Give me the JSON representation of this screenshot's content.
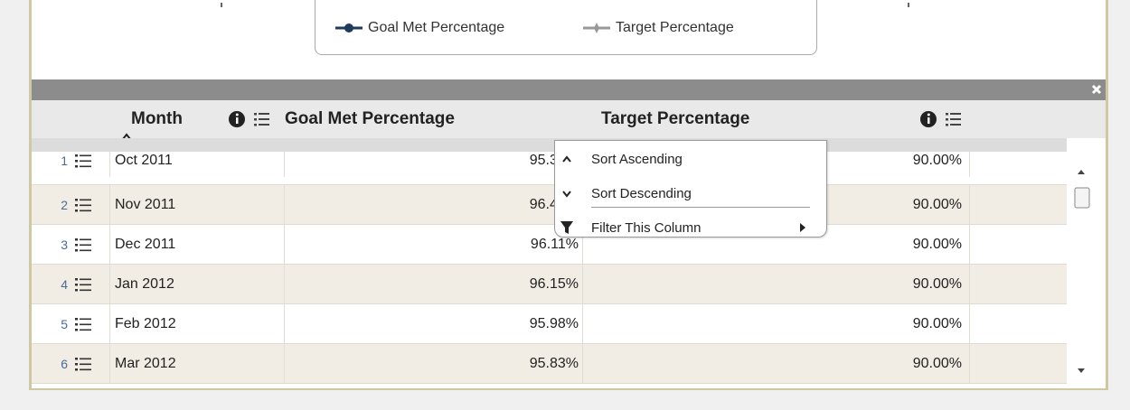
{
  "legend": {
    "items": [
      "Goal Met Percentage",
      "Target Percentage"
    ]
  },
  "table": {
    "headers": [
      "Month",
      "Goal Met Percentage",
      "Target Percentage"
    ],
    "rows": [
      {
        "index": "1",
        "month": "Oct 2011",
        "goal": "95.34%",
        "target": "90.00%"
      },
      {
        "index": "2",
        "month": "Nov 2011",
        "goal": "96.45%",
        "target": "90.00%"
      },
      {
        "index": "3",
        "month": "Dec 2011",
        "goal": "96.11%",
        "target": "90.00%"
      },
      {
        "index": "4",
        "month": "Jan 2012",
        "goal": "96.15%",
        "target": "90.00%"
      },
      {
        "index": "5",
        "month": "Feb 2012",
        "goal": "95.98%",
        "target": "90.00%"
      },
      {
        "index": "6",
        "month": "Mar 2012",
        "goal": "95.83%",
        "target": "90.00%"
      }
    ]
  },
  "menu": {
    "items": [
      "Sort Ascending",
      "Sort Descending",
      "Filter This Column"
    ]
  }
}
